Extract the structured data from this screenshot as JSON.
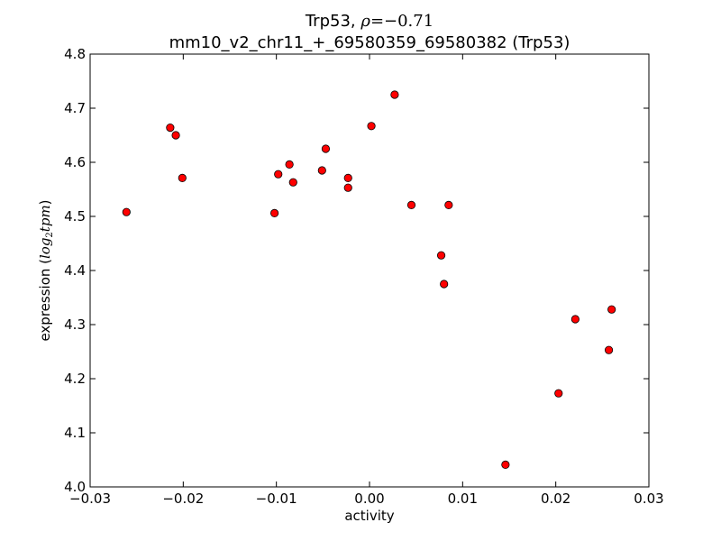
{
  "chart_data": {
    "type": "scatter",
    "title_main": "Trp53, ",
    "title_rho_symbol": "ρ",
    "title_rho_value": "=−0.71",
    "subtitle": "mm10_v2_chr11_+_69580359_69580382 (Trp53)",
    "xlabel": "activity",
    "ylabel_prefix": "expression (",
    "ylabel_math": "log",
    "ylabel_math_sub": "2",
    "ylabel_math_tail": "tpm",
    "ylabel_suffix": ")",
    "xlim": [
      -0.03,
      0.03
    ],
    "ylim": [
      4.0,
      4.8
    ],
    "xticks": [
      -0.03,
      -0.02,
      -0.01,
      0.0,
      0.01,
      0.02,
      0.03
    ],
    "xtick_labels": [
      "−0.03",
      "−0.02",
      "−0.01",
      "0.00",
      "0.01",
      "0.02",
      "0.03"
    ],
    "yticks": [
      4.0,
      4.1,
      4.2,
      4.3,
      4.4,
      4.5,
      4.6,
      4.7,
      4.8
    ],
    "ytick_labels": [
      "4.0",
      "4.1",
      "4.2",
      "4.3",
      "4.4",
      "4.5",
      "4.6",
      "4.7",
      "4.8"
    ],
    "grid": false,
    "marker_color": "#ff0000",
    "marker_edge": "#000000",
    "points": [
      {
        "x": -0.0261,
        "y": 4.508
      },
      {
        "x": -0.0214,
        "y": 4.664
      },
      {
        "x": -0.0208,
        "y": 4.65
      },
      {
        "x": -0.0201,
        "y": 4.571
      },
      {
        "x": -0.0102,
        "y": 4.506
      },
      {
        "x": -0.0098,
        "y": 4.578
      },
      {
        "x": -0.0086,
        "y": 4.596
      },
      {
        "x": -0.0082,
        "y": 4.563
      },
      {
        "x": -0.0051,
        "y": 4.585
      },
      {
        "x": -0.0047,
        "y": 4.625
      },
      {
        "x": -0.0023,
        "y": 4.571
      },
      {
        "x": -0.0023,
        "y": 4.553
      },
      {
        "x": 0.0002,
        "y": 4.667
      },
      {
        "x": 0.0027,
        "y": 4.725
      },
      {
        "x": 0.0045,
        "y": 4.521
      },
      {
        "x": 0.0085,
        "y": 4.521
      },
      {
        "x": 0.0077,
        "y": 4.428
      },
      {
        "x": 0.008,
        "y": 4.375
      },
      {
        "x": 0.0146,
        "y": 4.041
      },
      {
        "x": 0.0203,
        "y": 4.173
      },
      {
        "x": 0.0221,
        "y": 4.31
      },
      {
        "x": 0.0257,
        "y": 4.253
      },
      {
        "x": 0.026,
        "y": 4.328
      }
    ]
  }
}
